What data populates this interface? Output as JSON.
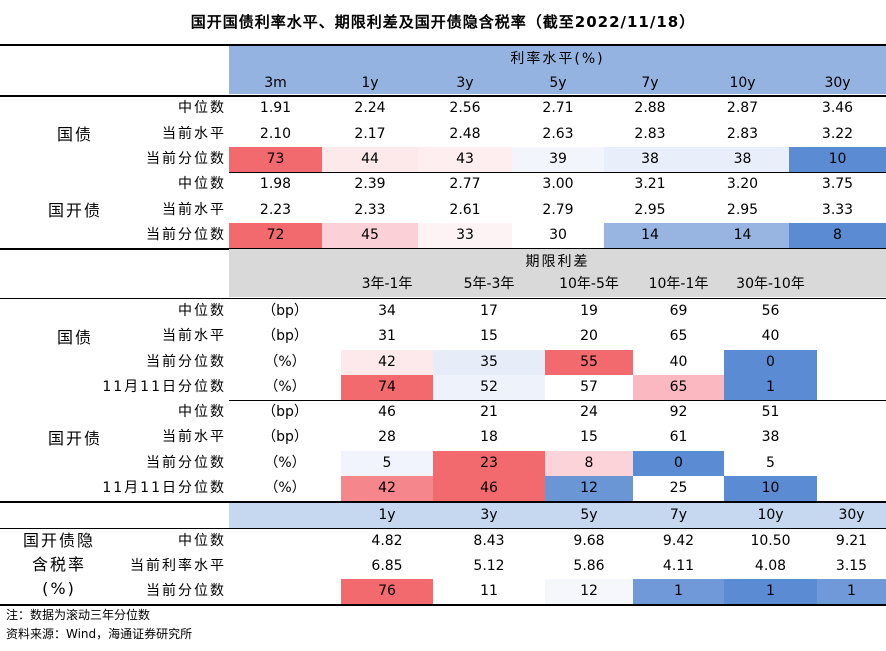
{
  "title": "国开国债利率水平、期限利差及国开债隐含税率（截至2022/11/18）",
  "colors": {
    "header_blue": "#95b3e0",
    "header_gray": "#d9d9d9",
    "header_lightblue": "#c6d8f0"
  },
  "section1": {
    "header": "利率水平(%)",
    "columns": [
      "3m",
      "1y",
      "3y",
      "5y",
      "7y",
      "10y",
      "30y"
    ],
    "groups": [
      {
        "name": "国债",
        "rows": [
          {
            "label": "中位数",
            "values": [
              "1.91",
              "2.24",
              "2.56",
              "2.71",
              "2.88",
              "2.87",
              "3.46"
            ]
          },
          {
            "label": "当前水平",
            "values": [
              "2.10",
              "2.17",
              "2.48",
              "2.63",
              "2.83",
              "2.83",
              "3.22"
            ]
          },
          {
            "label": "当前分位数",
            "values": [
              "73",
              "44",
              "43",
              "39",
              "38",
              "38",
              "10"
            ],
            "colors": [
              "#f36a6e",
              "#fde8ea",
              "#feeef0",
              "#f3f5fc",
              "#e8eefa",
              "#e8eefa",
              "#5b8bd3"
            ]
          }
        ]
      },
      {
        "name": "国开债",
        "rows": [
          {
            "label": "中位数",
            "values": [
              "1.98",
              "2.39",
              "2.77",
              "3.00",
              "3.21",
              "3.20",
              "3.75"
            ]
          },
          {
            "label": "当前水平",
            "values": [
              "2.23",
              "2.33",
              "2.61",
              "2.79",
              "2.95",
              "2.95",
              "3.33"
            ]
          },
          {
            "label": "当前分位数",
            "values": [
              "72",
              "45",
              "33",
              "30",
              "14",
              "14",
              "8"
            ],
            "colors": [
              "#f36a6e",
              "#fbd0d6",
              "#fdf3f5",
              "#ffffff",
              "#98b5e2",
              "#98b5e2",
              "#5b8bd3"
            ]
          }
        ]
      }
    ]
  },
  "section2": {
    "header": "期限利差",
    "columns": [
      "3年-1年",
      "5年-3年",
      "10年-5年",
      "10年-1年",
      "30年-10年"
    ],
    "groups": [
      {
        "name": "国债",
        "rows": [
          {
            "label": "中位数",
            "unit": "（bp）",
            "values": [
              "34",
              "17",
              "19",
              "69",
              "56"
            ]
          },
          {
            "label": "当前水平",
            "unit": "（bp）",
            "values": [
              "31",
              "15",
              "20",
              "65",
              "40"
            ]
          },
          {
            "label": "当前分位数",
            "unit": "（%）",
            "values": [
              "42",
              "35",
              "55",
              "40",
              "0"
            ],
            "colors": [
              "#fde9ec",
              "#e6edf9",
              "#f36a6e",
              "#ffffff",
              "#5b8bd3"
            ]
          },
          {
            "label": "11月11日分位数",
            "unit": "（%）",
            "values": [
              "74",
              "52",
              "57",
              "65",
              "1"
            ],
            "colors": [
              "#f36a6e",
              "#eef2fb",
              "#ffffff",
              "#fbb8c0",
              "#5b8bd3"
            ]
          }
        ]
      },
      {
        "name": "国开债",
        "rows": [
          {
            "label": "中位数",
            "unit": "（bp）",
            "values": [
              "46",
              "21",
              "24",
              "92",
              "51"
            ]
          },
          {
            "label": "当前水平",
            "unit": "（bp）",
            "values": [
              "28",
              "18",
              "15",
              "61",
              "38"
            ]
          },
          {
            "label": "当前分位数",
            "unit": "（%）",
            "values": [
              "5",
              "23",
              "8",
              "0",
              "5"
            ],
            "colors": [
              "#f1f4fc",
              "#f36a6e",
              "#fbd3d9",
              "#5b8bd3",
              "#ffffff"
            ]
          },
          {
            "label": "11月11日分位数",
            "unit": "（%）",
            "values": [
              "42",
              "46",
              "12",
              "25",
              "10"
            ],
            "colors": [
              "#f5868b",
              "#f36a6e",
              "#6a96d6",
              "#ffffff",
              "#5b8bd3"
            ]
          }
        ]
      }
    ]
  },
  "section3": {
    "columns": [
      "1y",
      "3y",
      "5y",
      "7y",
      "10y",
      "30y"
    ],
    "name_lines": [
      "国开债隐",
      "含税率",
      "(%)"
    ],
    "rows": [
      {
        "label": "中位数",
        "values": [
          "4.82",
          "8.43",
          "9.68",
          "9.42",
          "10.50",
          "9.21"
        ]
      },
      {
        "label": "当前利率水平",
        "values": [
          "6.85",
          "5.12",
          "5.86",
          "4.11",
          "4.08",
          "3.15"
        ]
      },
      {
        "label": "当前分位数",
        "values": [
          "76",
          "11",
          "12",
          "1",
          "1",
          "1"
        ],
        "colors": [
          "#f36a6e",
          "#ffffff",
          "#f5f7fd",
          "#6f99d8",
          "#5b8bd3",
          "#6f99d8"
        ]
      }
    ]
  },
  "footnotes": {
    "note": "注：数据为滚动三年分位数",
    "source": "资料来源：Wind，海通证券研究所"
  }
}
